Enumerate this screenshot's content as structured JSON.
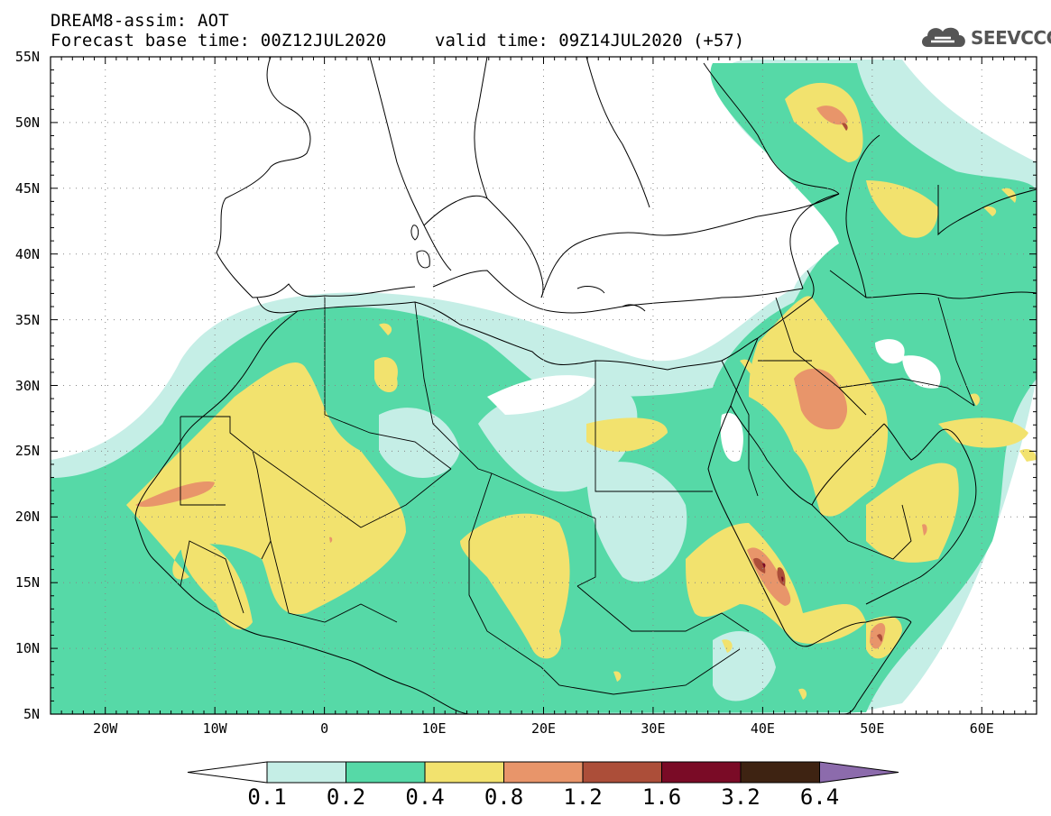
{
  "header": {
    "line1": "DREAM8-assim: AOT",
    "line2": "Forecast base time: 00Z12JUL2020",
    "valid": "valid time: 09Z14JUL2020 (+57)"
  },
  "logo": {
    "text": "SEEVCCC",
    "icon": "cloud-icon"
  },
  "map": {
    "lon_range": [
      -25,
      65
    ],
    "lat_range": [
      5,
      55
    ],
    "lat_labels": [
      "55N",
      "50N",
      "45N",
      "40N",
      "35N",
      "30N",
      "25N",
      "20N",
      "15N",
      "10N",
      "5N"
    ],
    "lon_labels": [
      "20W",
      "10W",
      "0",
      "10E",
      "20E",
      "30E",
      "40E",
      "50E",
      "60E"
    ]
  },
  "colorbar": {
    "labels": [
      "0.1",
      "0.2",
      "0.4",
      "0.8",
      "1.2",
      "1.6",
      "3.2",
      "6.4"
    ],
    "colors": {
      "c01_02": "#c5eee6",
      "c02_04": "#56d9a7",
      "c04_08": "#f2e26e",
      "c08_12": "#e8956a",
      "c12_16": "#ac4e39",
      "c16_32": "#7a0b26",
      "c32_64": "#3e2312",
      "c64_up": "#8c6bac"
    }
  }
}
